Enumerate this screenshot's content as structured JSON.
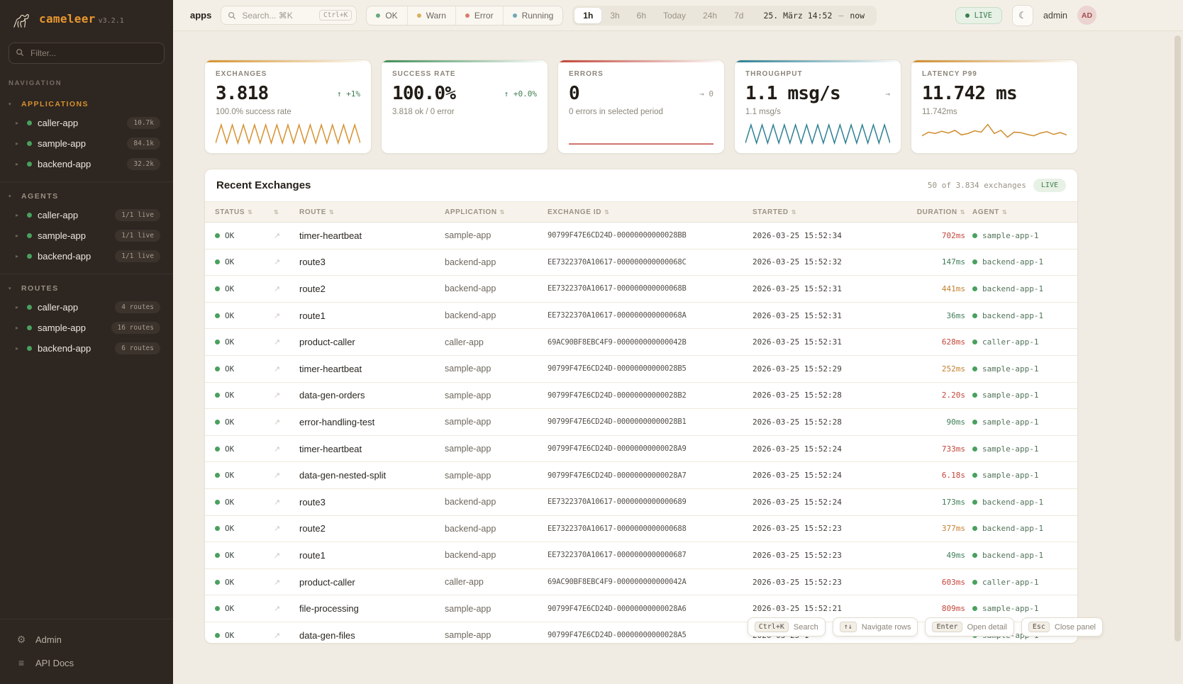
{
  "sidebar": {
    "brand": "cameleer",
    "version": "v3.2.1",
    "filter_placeholder": "Filter...",
    "nav_label": "NAVIGATION",
    "sections": [
      {
        "label": "APPLICATIONS",
        "accent": true,
        "items": [
          {
            "name": "caller-app",
            "badge": "10.7k"
          },
          {
            "name": "sample-app",
            "badge": "84.1k"
          },
          {
            "name": "backend-app",
            "badge": "32.2k"
          }
        ]
      },
      {
        "label": "AGENTS",
        "accent": false,
        "items": [
          {
            "name": "caller-app",
            "badge": "1/1 live"
          },
          {
            "name": "sample-app",
            "badge": "1/1 live"
          },
          {
            "name": "backend-app",
            "badge": "1/1 live"
          }
        ]
      },
      {
        "label": "ROUTES",
        "accent": false,
        "items": [
          {
            "name": "caller-app",
            "badge": "4 routes"
          },
          {
            "name": "sample-app",
            "badge": "16 routes"
          },
          {
            "name": "backend-app",
            "badge": "6 routes"
          }
        ]
      }
    ],
    "footer": [
      {
        "label": "Admin",
        "icon": "gear-icon"
      },
      {
        "label": "API Docs",
        "icon": "list-icon"
      }
    ]
  },
  "topbar": {
    "context": "apps",
    "search": {
      "placeholder": "Search... ⌘K",
      "kbd": "Ctrl+K"
    },
    "status_filters": [
      {
        "label": "OK",
        "color": "#6aa97c"
      },
      {
        "label": "Warn",
        "color": "#d9b05c"
      },
      {
        "label": "Error",
        "color": "#d97b6c"
      },
      {
        "label": "Running",
        "color": "#6fa9b5"
      }
    ],
    "time_ranges": [
      "1h",
      "3h",
      "6h",
      "Today",
      "24h",
      "7d"
    ],
    "active_range": "1h",
    "date_from": "25. März 14:52",
    "date_sep": "—",
    "date_to": "now",
    "live_label": "LIVE",
    "user": {
      "name": "admin",
      "initials": "AD"
    }
  },
  "cards": [
    {
      "label": "EXCHANGES",
      "value": "3.818",
      "trend": "↑ +1%",
      "trend_color": "green",
      "subtitle": "100.0% success rate",
      "accent": "#d6922f",
      "spark": {
        "color": "#d6922f",
        "values": [
          1,
          9,
          1,
          9,
          1,
          9,
          1,
          9,
          1,
          9,
          1,
          9,
          1,
          9,
          1,
          9,
          1,
          9,
          1,
          9,
          1,
          9,
          1,
          9,
          1,
          9,
          1
        ]
      }
    },
    {
      "label": "SUCCESS RATE",
      "value": "100.0%",
      "trend": "↑ +0.0%",
      "trend_color": "green",
      "subtitle": "3.818 ok / 0 error",
      "accent": "#3f8e57",
      "spark": {
        "color": "#3f8e57",
        "values": []
      }
    },
    {
      "label": "ERRORS",
      "value": "0",
      "trend": "→ 0",
      "trend_color": "gray",
      "subtitle": "0 errors in selected period",
      "accent": "#c2453a",
      "spark": {
        "color": "#c2453a",
        "values": [
          0.6,
          0.6
        ]
      }
    },
    {
      "label": "THROUGHPUT",
      "value": "1.1 msg/s",
      "trend": "→",
      "trend_color": "gray",
      "subtitle": "1.1 msg/s",
      "accent": "#2e8095",
      "spark": {
        "color": "#2e8095",
        "values": [
          1,
          9,
          1,
          9,
          1,
          9,
          1,
          9,
          1,
          9,
          1,
          9,
          1,
          9,
          1,
          9,
          1,
          9,
          1,
          9,
          1,
          9,
          1,
          9,
          1,
          9,
          1
        ]
      }
    },
    {
      "label": "LATENCY P99",
      "value": "11.742 ms",
      "trend": "",
      "trend_color": "gray",
      "subtitle": "11.742ms",
      "accent": "#cf8c2e",
      "spark": {
        "color": "#cf8c2e",
        "values": [
          4.2,
          5.8,
          5.2,
          6.2,
          5.4,
          6.6,
          4.6,
          5.2,
          6.4,
          5.8,
          9.2,
          5.2,
          6.6,
          3.6,
          5.8,
          5.6,
          4.8,
          4.2,
          5.4,
          6.0,
          4.8,
          5.6,
          4.6
        ]
      }
    }
  ],
  "table": {
    "title": "Recent Exchanges",
    "summary": "50 of 3.834 exchanges",
    "live_label": "LIVE",
    "columns": [
      "STATUS",
      "",
      "ROUTE",
      "APPLICATION",
      "EXCHANGE ID",
      "STARTED",
      "DURATION",
      "AGENT"
    ],
    "link_icon": "↗",
    "rows": [
      {
        "status": "OK",
        "route": "timer-heartbeat",
        "app": "sample-app",
        "exchange_id": "90799F47E6CD24D-00000000000028BB",
        "started": "2026-03-25 15:52:34",
        "duration": "702ms",
        "duration_level": "slow",
        "agent": "sample-app-1"
      },
      {
        "status": "OK",
        "route": "route3",
        "app": "backend-app",
        "exchange_id": "EE7322370A10617-000000000000068C",
        "started": "2026-03-25 15:52:32",
        "duration": "147ms",
        "duration_level": "fast",
        "agent": "backend-app-1"
      },
      {
        "status": "OK",
        "route": "route2",
        "app": "backend-app",
        "exchange_id": "EE7322370A10617-000000000000068B",
        "started": "2026-03-25 15:52:31",
        "duration": "441ms",
        "duration_level": "medium",
        "agent": "backend-app-1"
      },
      {
        "status": "OK",
        "route": "route1",
        "app": "backend-app",
        "exchange_id": "EE7322370A10617-000000000000068A",
        "started": "2026-03-25 15:52:31",
        "duration": "36ms",
        "duration_level": "fast",
        "agent": "backend-app-1"
      },
      {
        "status": "OK",
        "route": "product-caller",
        "app": "caller-app",
        "exchange_id": "69AC90BF8EBC4F9-000000000000042B",
        "started": "2026-03-25 15:52:31",
        "duration": "628ms",
        "duration_level": "slow",
        "agent": "caller-app-1"
      },
      {
        "status": "OK",
        "route": "timer-heartbeat",
        "app": "sample-app",
        "exchange_id": "90799F47E6CD24D-00000000000028B5",
        "started": "2026-03-25 15:52:29",
        "duration": "252ms",
        "duration_level": "medium",
        "agent": "sample-app-1"
      },
      {
        "status": "OK",
        "route": "data-gen-orders",
        "app": "sample-app",
        "exchange_id": "90799F47E6CD24D-00000000000028B2",
        "started": "2026-03-25 15:52:28",
        "duration": "2.20s",
        "duration_level": "slow",
        "agent": "sample-app-1"
      },
      {
        "status": "OK",
        "route": "error-handling-test",
        "app": "sample-app",
        "exchange_id": "90799F47E6CD24D-00000000000028B1",
        "started": "2026-03-25 15:52:28",
        "duration": "90ms",
        "duration_level": "fast",
        "agent": "sample-app-1"
      },
      {
        "status": "OK",
        "route": "timer-heartbeat",
        "app": "sample-app",
        "exchange_id": "90799F47E6CD24D-00000000000028A9",
        "started": "2026-03-25 15:52:24",
        "duration": "733ms",
        "duration_level": "slow",
        "agent": "sample-app-1"
      },
      {
        "status": "OK",
        "route": "data-gen-nested-split",
        "app": "sample-app",
        "exchange_id": "90799F47E6CD24D-00000000000028A7",
        "started": "2026-03-25 15:52:24",
        "duration": "6.18s",
        "duration_level": "slow",
        "agent": "sample-app-1"
      },
      {
        "status": "OK",
        "route": "route3",
        "app": "backend-app",
        "exchange_id": "EE7322370A10617-0000000000000689",
        "started": "2026-03-25 15:52:24",
        "duration": "173ms",
        "duration_level": "fast",
        "agent": "backend-app-1"
      },
      {
        "status": "OK",
        "route": "route2",
        "app": "backend-app",
        "exchange_id": "EE7322370A10617-0000000000000688",
        "started": "2026-03-25 15:52:23",
        "duration": "377ms",
        "duration_level": "medium",
        "agent": "backend-app-1"
      },
      {
        "status": "OK",
        "route": "route1",
        "app": "backend-app",
        "exchange_id": "EE7322370A10617-0000000000000687",
        "started": "2026-03-25 15:52:23",
        "duration": "49ms",
        "duration_level": "fast",
        "agent": "backend-app-1"
      },
      {
        "status": "OK",
        "route": "product-caller",
        "app": "caller-app",
        "exchange_id": "69AC90BF8EBC4F9-000000000000042A",
        "started": "2026-03-25 15:52:23",
        "duration": "603ms",
        "duration_level": "slow",
        "agent": "caller-app-1"
      },
      {
        "status": "OK",
        "route": "file-processing",
        "app": "sample-app",
        "exchange_id": "90799F47E6CD24D-00000000000028A6",
        "started": "2026-03-25 15:52:21",
        "duration": "809ms",
        "duration_level": "slow",
        "agent": "sample-app-1"
      },
      {
        "status": "OK",
        "route": "data-gen-files",
        "app": "sample-app",
        "exchange_id": "90799F47E6CD24D-00000000000028A5",
        "started": "2026-03-25 1",
        "duration": "",
        "duration_level": "fast",
        "agent": "sample-app-1"
      }
    ]
  },
  "hints": [
    {
      "kbd": "Ctrl+K",
      "label": "Search"
    },
    {
      "kbd": "↑↓",
      "label": "Navigate rows"
    },
    {
      "kbd": "Enter",
      "label": "Open detail"
    },
    {
      "kbd": "Esc",
      "label": "Close panel"
    }
  ]
}
